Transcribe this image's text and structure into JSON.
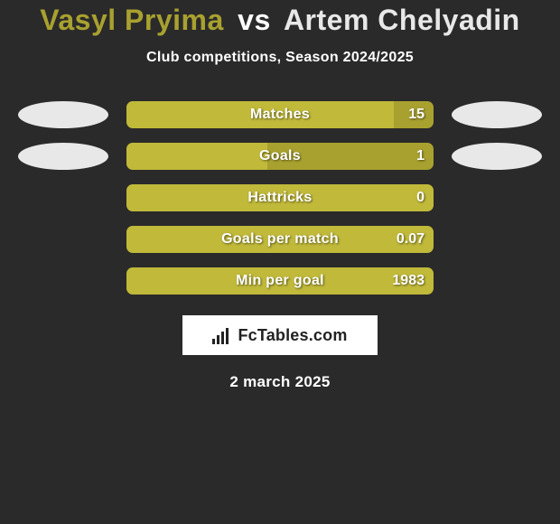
{
  "title": {
    "player1": "Vasyl Pryima",
    "vs": "vs",
    "player2": "Artem Chelyadin",
    "player1_color": "#a8a12f",
    "vs_color": "#ffffff",
    "player2_color": "#e8e8e8"
  },
  "subtitle": "Club competitions, Season 2024/2025",
  "colors": {
    "background": "#2a2a2a",
    "bar_track": "#a8a12f",
    "bar_fill": "#c0b93a",
    "ellipse_left": "#e8e8e8",
    "ellipse_right": "#e8e8e8",
    "text": "#ffffff",
    "brand_bg": "#ffffff",
    "brand_fg": "#222222"
  },
  "rows": [
    {
      "label": "Matches",
      "value": "15",
      "fill_pct": 87,
      "left_ellipse": true,
      "right_ellipse": true
    },
    {
      "label": "Goals",
      "value": "1",
      "fill_pct": 46,
      "left_ellipse": true,
      "right_ellipse": true
    },
    {
      "label": "Hattricks",
      "value": "0",
      "fill_pct": 100,
      "left_ellipse": false,
      "right_ellipse": false
    },
    {
      "label": "Goals per match",
      "value": "0.07",
      "fill_pct": 100,
      "left_ellipse": false,
      "right_ellipse": false
    },
    {
      "label": "Min per goal",
      "value": "1983",
      "fill_pct": 100,
      "left_ellipse": false,
      "right_ellipse": false
    }
  ],
  "brand": "FcTables.com",
  "date": "2 march 2025"
}
